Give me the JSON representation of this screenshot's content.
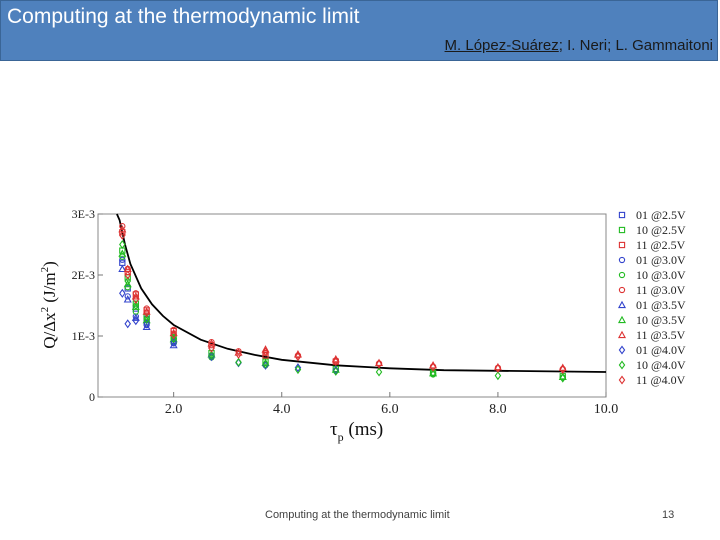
{
  "header": {
    "title": "Computing at the thermodynamic limit",
    "authors_first": "M. López-Suárez",
    "authors_rest": "; I. Neri; L. Gammaitoni"
  },
  "footer": {
    "text": "Computing at the thermodynamic limit",
    "page": "13"
  },
  "colors": {
    "title_bg": "#4f81bd",
    "blue": "#3344cc",
    "green": "#22bb22",
    "red": "#dd3333",
    "fit_line": "#000000"
  },
  "chart_data": {
    "type": "scatter",
    "xlabel_symbol": "τ",
    "xlabel_sub": "p",
    "xlabel_unit": "(ms)",
    "ylabel_text": "Q/Δx",
    "ylabel_sup": "2",
    "ylabel_unit_open": "(J/m",
    "ylabel_unit_sup": "2",
    "ylabel_unit_close": ")",
    "xlim": [
      0.6,
      10.0
    ],
    "ylim": [
      0,
      0.003
    ],
    "x_ticks": [
      2.0,
      4.0,
      6.0,
      8.0,
      10.0
    ],
    "x_tick_labels": [
      "2.0",
      "4.0",
      "6.0",
      "8.0",
      "10.0"
    ],
    "y_ticks": [
      0,
      0.001,
      0.002,
      0.003
    ],
    "y_tick_labels": [
      "0",
      "1E-3",
      "2E-3",
      "3E-3"
    ],
    "legend_position": "right",
    "series": [
      {
        "name": "01 @2.5V",
        "marker": "square",
        "color": "#3344cc",
        "x": [
          1.05,
          1.15,
          1.3,
          1.5,
          2.0
        ],
        "y": [
          0.0022,
          0.00178,
          0.00145,
          0.00128,
          0.00092
        ]
      },
      {
        "name": "10 @2.5V",
        "marker": "square",
        "color": "#22bb22",
        "x": [
          1.05,
          1.15,
          1.3,
          1.5,
          2.0,
          2.7,
          3.7,
          5.0,
          6.8,
          9.2
        ],
        "y": [
          0.0024,
          0.00196,
          0.00153,
          0.00131,
          0.00098,
          0.00072,
          0.00058,
          0.00046,
          0.0004,
          0.00034
        ]
      },
      {
        "name": "11 @2.5V",
        "marker": "square",
        "color": "#dd3333",
        "x": [
          1.05,
          1.15,
          1.3,
          1.5,
          2.0,
          2.7,
          3.7,
          5.0
        ],
        "y": [
          0.0027,
          0.00205,
          0.00168,
          0.00142,
          0.00108,
          0.00085,
          0.00068,
          0.00058
        ]
      },
      {
        "name": "01 @3.0V",
        "marker": "circle",
        "color": "#3344cc",
        "x": [
          1.05,
          1.15,
          1.3,
          1.5,
          2.0,
          2.7
        ],
        "y": [
          0.00225,
          0.00165,
          0.00132,
          0.00118,
          0.00088,
          0.00068
        ]
      },
      {
        "name": "10 @3.0V",
        "marker": "circle",
        "color": "#22bb22",
        "x": [
          1.05,
          1.15,
          1.3,
          1.5,
          2.0,
          2.7,
          3.7,
          5.0,
          6.8,
          9.2
        ],
        "y": [
          0.0023,
          0.0018,
          0.0014,
          0.00122,
          0.0009,
          0.00065,
          0.00052,
          0.00043,
          0.00037,
          0.00032
        ]
      },
      {
        "name": "11 @3.0V",
        "marker": "circle",
        "color": "#dd3333",
        "x": [
          1.05,
          1.15,
          1.3,
          1.5,
          2.0,
          2.7,
          3.2,
          3.7,
          4.3,
          5.0,
          5.8,
          6.8,
          8.0,
          9.2
        ],
        "y": [
          0.0028,
          0.0021,
          0.0017,
          0.00145,
          0.0011,
          0.0009,
          0.00075,
          0.00072,
          0.00068,
          0.0006,
          0.00055,
          0.0005,
          0.00048,
          0.00046
        ]
      },
      {
        "name": "01 @3.5V",
        "marker": "triangle-up",
        "color": "#3344cc",
        "x": [
          1.05,
          1.15,
          1.3,
          1.5,
          2.0
        ],
        "y": [
          0.0021,
          0.0016,
          0.0013,
          0.00115,
          0.00085
        ]
      },
      {
        "name": "10 @3.5V",
        "marker": "triangle-up",
        "color": "#22bb22",
        "x": [
          1.05,
          1.15,
          1.3,
          1.5,
          2.0,
          2.7,
          3.7,
          5.0,
          6.8,
          9.2
        ],
        "y": [
          0.00235,
          0.00185,
          0.00148,
          0.00126,
          0.00095,
          0.0007,
          0.00056,
          0.00045,
          0.00039,
          0.00033
        ]
      },
      {
        "name": "11 @3.5V",
        "marker": "triangle-up",
        "color": "#dd3333",
        "x": [
          1.05,
          1.15,
          1.3,
          1.5,
          2.0,
          2.7,
          3.2,
          3.7,
          4.3,
          5.0,
          5.8,
          6.8,
          8.0,
          9.2
        ],
        "y": [
          0.00275,
          0.0021,
          0.00165,
          0.0014,
          0.00105,
          0.00088,
          0.00073,
          0.00078,
          0.0007,
          0.00062,
          0.00056,
          0.00052,
          0.00049,
          0.00048
        ]
      },
      {
        "name": "01 @4.0V",
        "marker": "diamond",
        "color": "#3344cc",
        "x": [
          1.05,
          1.15,
          1.3,
          1.5,
          2.0,
          2.7,
          3.2,
          3.7,
          4.3,
          5.0
        ],
        "y": [
          0.0017,
          0.0012,
          0.00125,
          0.0012,
          0.0009,
          0.00066,
          0.00056,
          0.00052,
          0.00048,
          0.00044
        ]
      },
      {
        "name": "10 @4.0V",
        "marker": "diamond",
        "color": "#22bb22",
        "x": [
          1.05,
          1.15,
          1.3,
          1.5,
          2.0,
          2.7,
          3.2,
          3.7,
          4.3,
          5.0,
          5.8,
          6.8,
          8.0,
          9.2
        ],
        "y": [
          0.0025,
          0.0019,
          0.0015,
          0.00128,
          0.00096,
          0.00068,
          0.00057,
          0.00054,
          0.00045,
          0.00042,
          0.00041,
          0.00039,
          0.00035,
          0.00031
        ]
      },
      {
        "name": "11 @4.0V",
        "marker": "diamond",
        "color": "#dd3333",
        "x": [
          1.05,
          1.15,
          1.3,
          1.5,
          2.0,
          2.7,
          3.2,
          3.7,
          4.3,
          5.0,
          5.8,
          6.8,
          8.0,
          9.2
        ],
        "y": [
          0.00265,
          0.002,
          0.0016,
          0.00138,
          0.00102,
          0.0008,
          0.0007,
          0.00074,
          0.00066,
          0.00058,
          0.00054,
          0.00049,
          0.00047,
          0.00045
        ]
      }
    ],
    "fit": {
      "name": "",
      "x": [
        0.95,
        1.0,
        1.1,
        1.2,
        1.4,
        1.6,
        1.8,
        2.0,
        2.5,
        3.0,
        3.5,
        4.0,
        5.0,
        6.0,
        7.0,
        8.0,
        9.0,
        10.0
      ],
      "y": [
        0.003,
        0.0029,
        0.0025,
        0.00218,
        0.00178,
        0.00152,
        0.00133,
        0.00118,
        0.00094,
        0.00079,
        0.00069,
        0.00061,
        0.00052,
        0.00047,
        0.00044,
        0.00043,
        0.00042,
        0.00041
      ]
    }
  }
}
